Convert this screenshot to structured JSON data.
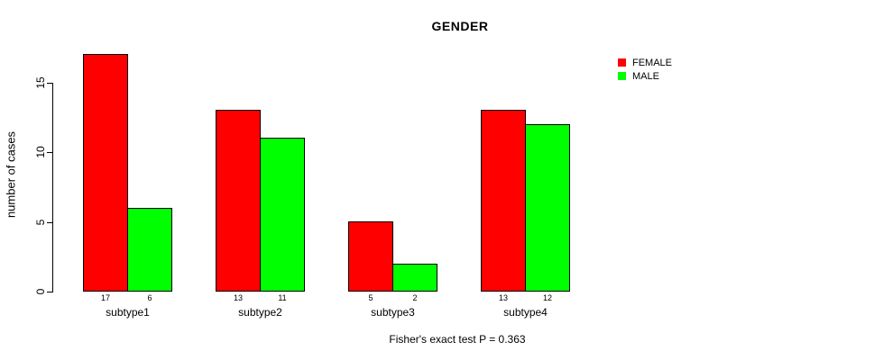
{
  "chart_data": {
    "type": "bar",
    "title": "GENDER",
    "ylabel": "number of cases",
    "xlabel": "",
    "categories": [
      "subtype1",
      "subtype2",
      "subtype3",
      "subtype4"
    ],
    "series": [
      {
        "name": "FEMALE",
        "color": "#ff0000",
        "values": [
          17,
          13,
          5,
          13
        ]
      },
      {
        "name": "MALE",
        "color": "#00ff00",
        "values": [
          6,
          11,
          2,
          12
        ]
      }
    ],
    "yticks": [
      0,
      5,
      10,
      15
    ],
    "ylim": [
      0,
      17
    ],
    "grid": false,
    "bar_value_labels_shown": true,
    "legend_position": "top-right",
    "footnote": "Fisher's exact test P = 0.363"
  },
  "colors": {
    "background": "#ffffff",
    "axis": "#000000",
    "text": "#000000",
    "bar_border": "#000000",
    "female": "#ff0000",
    "male": "#00ff00"
  }
}
